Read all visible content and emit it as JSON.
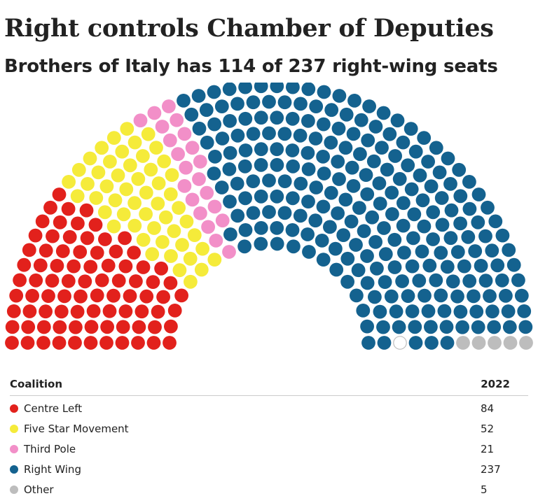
{
  "title": "Right controls Chamber of Deputies",
  "subtitle": "Brothers of Italy has 114 of 237 right-wing seats",
  "chart_data": {
    "type": "parliament",
    "total_seats": 400,
    "legend_header": {
      "label": "Coalition",
      "value": "2022"
    },
    "series": [
      {
        "name": "Centre Left",
        "seats": 84,
        "color": "#e2211c",
        "display": "84"
      },
      {
        "name": "Five Star Movement",
        "seats": 52,
        "color": "#f5eb3a",
        "display": "52"
      },
      {
        "name": "Third Pole",
        "seats": 21,
        "color": "#f28fc8",
        "display": "21"
      },
      {
        "name": "Right Wing",
        "seats": 237,
        "color": "#14628f",
        "display": "237"
      },
      {
        "name": "Other",
        "seats": 5,
        "color": "#bdbdbd",
        "display": "5"
      }
    ],
    "unfilled_color": "#ffffff"
  }
}
